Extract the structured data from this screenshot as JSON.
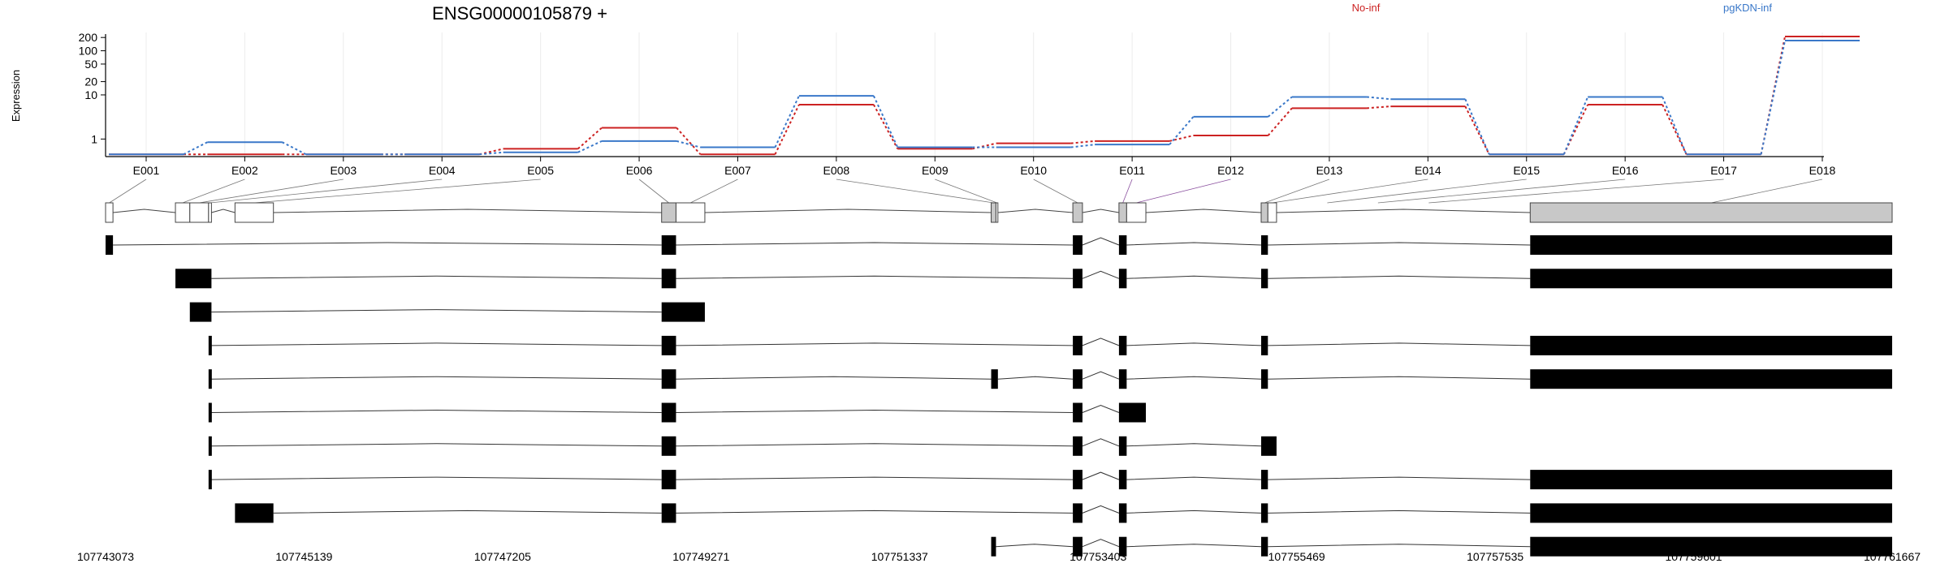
{
  "chart_data": {
    "type": "line",
    "title": "ENSG00000105879 +",
    "ylabel": "Expression",
    "yscale": "log",
    "ylim": [
      0.4,
      260
    ],
    "yticks": [
      1,
      10,
      20,
      50,
      100,
      200
    ],
    "ytick_labels": [
      "1",
      "10",
      "20",
      "50",
      "100",
      "200"
    ],
    "grid": true,
    "categories": [
      "E001",
      "E002",
      "E003",
      "E004",
      "E005",
      "E006",
      "E007",
      "E008",
      "E009",
      "E010",
      "E011",
      "E012",
      "E013",
      "E014",
      "E015",
      "E016",
      "E017",
      "E018"
    ],
    "legend_position": "top",
    "series": [
      {
        "name": "No-inf",
        "color": "#cc2222",
        "values": [
          0.45,
          0.45,
          0.45,
          0.45,
          0.6,
          1.8,
          0.45,
          6,
          0.6,
          0.8,
          0.9,
          1.2,
          5,
          5.5,
          0.45,
          6,
          0.45,
          210
        ]
      },
      {
        "name": "pgKDN-inf",
        "color": "#3a78c9",
        "values": [
          0.45,
          0.85,
          0.45,
          0.45,
          0.5,
          0.9,
          0.65,
          9.5,
          0.65,
          0.65,
          0.75,
          3.2,
          9,
          8,
          0.45,
          9,
          0.45,
          170
        ]
      }
    ],
    "genome_axis": {
      "range": [
        107743073,
        107761667
      ],
      "ticks": [
        "107743073",
        "107745139",
        "107747205",
        "107749271",
        "107751337",
        "107753403",
        "107755469",
        "107757535",
        "107759601",
        "107761667"
      ]
    },
    "exons": [
      {
        "id": "E001",
        "start": 107743073,
        "end": 107743150,
        "fill": "#ffffff"
      },
      {
        "id": "E002",
        "start": 107743800,
        "end": 107743950,
        "fill": "#ffffff"
      },
      {
        "id": "E003",
        "start": 107743950,
        "end": 107744145,
        "fill": "#ffffff"
      },
      {
        "id": "E004",
        "start": 107744145,
        "end": 107744175,
        "fill": "#ffffff"
      },
      {
        "id": "E005",
        "start": 107744420,
        "end": 107744820,
        "fill": "#ffffff"
      },
      {
        "id": "E006",
        "start": 107748860,
        "end": 107749010,
        "fill": "#c8c8c8"
      },
      {
        "id": "E007",
        "start": 107749010,
        "end": 107749310,
        "fill": "#ffffff"
      },
      {
        "id": "E008",
        "start": 107752290,
        "end": 107752340,
        "fill": "#c8c8c8"
      },
      {
        "id": "E009",
        "start": 107752340,
        "end": 107752360,
        "fill": "#ffffff"
      },
      {
        "id": "E010",
        "start": 107753140,
        "end": 107753240,
        "fill": "#c8c8c8"
      },
      {
        "id": "E011",
        "start": 107753620,
        "end": 107753700,
        "fill": "#c8c8c8"
      },
      {
        "id": "E012",
        "start": 107753700,
        "end": 107753900,
        "fill": "#ffffff"
      },
      {
        "id": "E013",
        "start": 107755100,
        "end": 107755170,
        "fill": "#c8c8c8"
      },
      {
        "id": "E014",
        "start": 107755170,
        "end": 107755260,
        "fill": "#ffffff"
      },
      {
        "id": "E018",
        "start": 107757900,
        "end": 107761667,
        "fill": "#c8c8c8"
      }
    ],
    "transcripts": [
      [
        [
          107743073,
          107743150
        ],
        [
          107748860,
          107749010
        ],
        [
          107753140,
          107753240
        ],
        [
          107753620,
          107753700
        ],
        [
          107755100,
          107755170
        ],
        [
          107757900,
          107761667
        ]
      ],
      [
        [
          107743800,
          107744175
        ],
        [
          107748860,
          107749010
        ],
        [
          107753140,
          107753240
        ],
        [
          107753620,
          107753700
        ],
        [
          107755100,
          107755170
        ],
        [
          107757900,
          107761667
        ]
      ],
      [
        [
          107743950,
          107744175
        ],
        [
          107748860,
          107749310
        ]
      ],
      [
        [
          107744145,
          107744175
        ],
        [
          107748860,
          107749010
        ],
        [
          107753140,
          107753240
        ],
        [
          107753620,
          107753700
        ],
        [
          107755100,
          107755170
        ],
        [
          107757900,
          107761667
        ]
      ],
      [
        [
          107744145,
          107744175
        ],
        [
          107748860,
          107749010
        ],
        [
          107752290,
          107752360
        ],
        [
          107753140,
          107753240
        ],
        [
          107753620,
          107753700
        ],
        [
          107755100,
          107755170
        ],
        [
          107757900,
          107761667
        ]
      ],
      [
        [
          107744145,
          107744175
        ],
        [
          107748860,
          107749010
        ],
        [
          107753140,
          107753240
        ],
        [
          107753620,
          107753900
        ]
      ],
      [
        [
          107744145,
          107744175
        ],
        [
          107748860,
          107749010
        ],
        [
          107753140,
          107753240
        ],
        [
          107753620,
          107753700
        ],
        [
          107755100,
          107755260
        ]
      ],
      [
        [
          107744145,
          107744175
        ],
        [
          107748860,
          107749010
        ],
        [
          107753140,
          107753240
        ],
        [
          107753620,
          107753700
        ],
        [
          107755100,
          107755170
        ],
        [
          107757900,
          107761667
        ]
      ],
      [
        [
          107744420,
          107744820
        ],
        [
          107748860,
          107749010
        ],
        [
          107753140,
          107753240
        ],
        [
          107753620,
          107753700
        ],
        [
          107755100,
          107755170
        ],
        [
          107757900,
          107761667
        ]
      ],
      [
        [
          107752290,
          107752340
        ],
        [
          107753140,
          107753240
        ],
        [
          107753620,
          107753700
        ],
        [
          107755100,
          107755170
        ],
        [
          107757900,
          107761667
        ]
      ]
    ]
  }
}
